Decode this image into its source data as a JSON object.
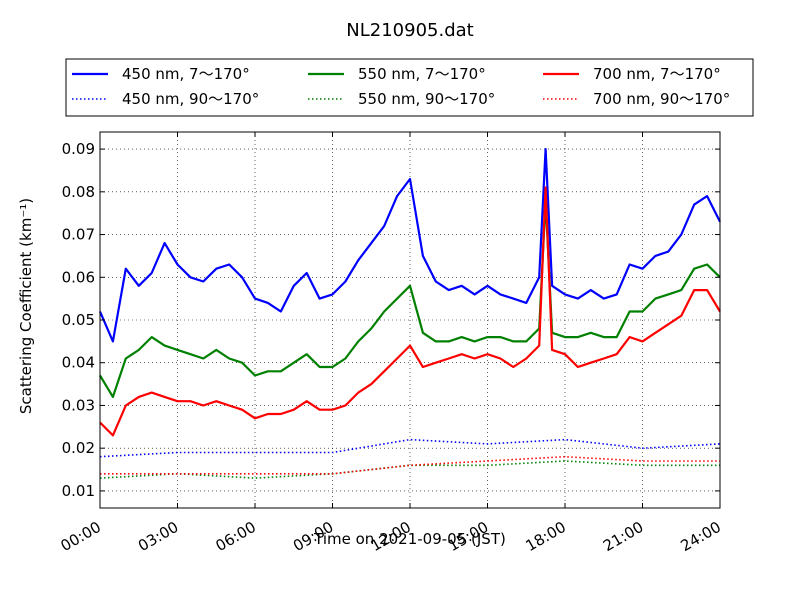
{
  "chart_data": {
    "type": "line",
    "title": "NL210905.dat",
    "xlabel": "Time on 2021-09-05 (JST)",
    "ylabel": "Scattering Coefficient (km⁻¹)",
    "xlim": [
      "00:00",
      "24:00"
    ],
    "ylim": [
      0.006,
      0.094
    ],
    "x_ticks": [
      "00:00",
      "03:00",
      "06:00",
      "09:00",
      "12:00",
      "15:00",
      "18:00",
      "21:00",
      "24:00"
    ],
    "y_ticks": [
      "0.01",
      "0.02",
      "0.03",
      "0.04",
      "0.05",
      "0.06",
      "0.07",
      "0.08",
      "0.09"
    ],
    "grid": true,
    "legend_position": "top",
    "series": [
      {
        "name": "450 nm, 7～170°",
        "color": "#0000ff",
        "style": "solid",
        "x": [
          "00:00",
          "00:30",
          "01:00",
          "01:30",
          "02:00",
          "02:30",
          "03:00",
          "03:30",
          "04:00",
          "04:30",
          "05:00",
          "05:30",
          "06:00",
          "06:30",
          "07:00",
          "07:30",
          "08:00",
          "08:30",
          "09:00",
          "09:30",
          "10:00",
          "10:30",
          "11:00",
          "11:30",
          "12:00",
          "12:30",
          "13:00",
          "13:30",
          "14:00",
          "14:30",
          "15:00",
          "15:30",
          "16:00",
          "16:30",
          "17:00",
          "17:15",
          "17:30",
          "18:00",
          "18:30",
          "19:00",
          "19:30",
          "20:00",
          "20:30",
          "21:00",
          "21:30",
          "22:00",
          "22:30",
          "23:00",
          "23:30",
          "24:00"
        ],
        "y": [
          0.052,
          0.045,
          0.062,
          0.058,
          0.061,
          0.068,
          0.063,
          0.06,
          0.059,
          0.062,
          0.063,
          0.06,
          0.055,
          0.054,
          0.052,
          0.058,
          0.061,
          0.055,
          0.056,
          0.059,
          0.064,
          0.068,
          0.072,
          0.079,
          0.083,
          0.065,
          0.059,
          0.057,
          0.058,
          0.056,
          0.058,
          0.056,
          0.055,
          0.054,
          0.06,
          0.09,
          0.058,
          0.056,
          0.055,
          0.057,
          0.055,
          0.056,
          0.063,
          0.062,
          0.065,
          0.066,
          0.07,
          0.077,
          0.079,
          0.073
        ]
      },
      {
        "name": "550 nm, 7～170°",
        "color": "#008000",
        "style": "solid",
        "x": [
          "00:00",
          "00:30",
          "01:00",
          "01:30",
          "02:00",
          "02:30",
          "03:00",
          "03:30",
          "04:00",
          "04:30",
          "05:00",
          "05:30",
          "06:00",
          "06:30",
          "07:00",
          "07:30",
          "08:00",
          "08:30",
          "09:00",
          "09:30",
          "10:00",
          "10:30",
          "11:00",
          "11:30",
          "12:00",
          "12:30",
          "13:00",
          "13:30",
          "14:00",
          "14:30",
          "15:00",
          "15:30",
          "16:00",
          "16:30",
          "17:00",
          "17:15",
          "17:30",
          "18:00",
          "18:30",
          "19:00",
          "19:30",
          "20:00",
          "20:30",
          "21:00",
          "21:30",
          "22:00",
          "22:30",
          "23:00",
          "23:30",
          "24:00"
        ],
        "y": [
          0.037,
          0.032,
          0.041,
          0.043,
          0.046,
          0.044,
          0.043,
          0.042,
          0.041,
          0.043,
          0.041,
          0.04,
          0.037,
          0.038,
          0.038,
          0.04,
          0.042,
          0.039,
          0.039,
          0.041,
          0.045,
          0.048,
          0.052,
          0.055,
          0.058,
          0.047,
          0.045,
          0.045,
          0.046,
          0.045,
          0.046,
          0.046,
          0.045,
          0.045,
          0.048,
          0.078,
          0.047,
          0.046,
          0.046,
          0.047,
          0.046,
          0.046,
          0.052,
          0.052,
          0.055,
          0.056,
          0.057,
          0.062,
          0.063,
          0.06
        ]
      },
      {
        "name": "700 nm, 7～170°",
        "color": "#ff0000",
        "style": "solid",
        "x": [
          "00:00",
          "00:30",
          "01:00",
          "01:30",
          "02:00",
          "02:30",
          "03:00",
          "03:30",
          "04:00",
          "04:30",
          "05:00",
          "05:30",
          "06:00",
          "06:30",
          "07:00",
          "07:30",
          "08:00",
          "08:30",
          "09:00",
          "09:30",
          "10:00",
          "10:30",
          "11:00",
          "11:30",
          "12:00",
          "12:30",
          "13:00",
          "13:30",
          "14:00",
          "14:30",
          "15:00",
          "15:30",
          "16:00",
          "16:30",
          "17:00",
          "17:15",
          "17:30",
          "18:00",
          "18:30",
          "19:00",
          "19:30",
          "20:00",
          "20:30",
          "21:00",
          "21:30",
          "22:00",
          "22:30",
          "23:00",
          "23:30",
          "24:00"
        ],
        "y": [
          0.026,
          0.023,
          0.03,
          0.032,
          0.033,
          0.032,
          0.031,
          0.031,
          0.03,
          0.031,
          0.03,
          0.029,
          0.027,
          0.028,
          0.028,
          0.029,
          0.031,
          0.029,
          0.029,
          0.03,
          0.033,
          0.035,
          0.038,
          0.041,
          0.044,
          0.039,
          0.04,
          0.041,
          0.042,
          0.041,
          0.042,
          0.041,
          0.039,
          0.041,
          0.044,
          0.081,
          0.043,
          0.042,
          0.039,
          0.04,
          0.041,
          0.042,
          0.046,
          0.045,
          0.047,
          0.049,
          0.051,
          0.057,
          0.057,
          0.052
        ]
      },
      {
        "name": "450 nm, 90～170°",
        "color": "#0000ff",
        "style": "dotted",
        "x": [
          "00:00",
          "03:00",
          "06:00",
          "09:00",
          "12:00",
          "15:00",
          "18:00",
          "21:00",
          "24:00"
        ],
        "y": [
          0.018,
          0.019,
          0.019,
          0.019,
          0.022,
          0.021,
          0.022,
          0.02,
          0.021
        ]
      },
      {
        "name": "550 nm, 90～170°",
        "color": "#008000",
        "style": "dotted",
        "x": [
          "00:00",
          "03:00",
          "06:00",
          "09:00",
          "12:00",
          "15:00",
          "18:00",
          "21:00",
          "24:00"
        ],
        "y": [
          0.013,
          0.014,
          0.013,
          0.014,
          0.016,
          0.016,
          0.017,
          0.016,
          0.016
        ]
      },
      {
        "name": "700 nm, 90～170°",
        "color": "#ff0000",
        "style": "dotted",
        "x": [
          "00:00",
          "03:00",
          "06:00",
          "09:00",
          "12:00",
          "15:00",
          "18:00",
          "21:00",
          "24:00"
        ],
        "y": [
          0.014,
          0.014,
          0.014,
          0.014,
          0.016,
          0.017,
          0.018,
          0.017,
          0.017
        ]
      }
    ]
  }
}
